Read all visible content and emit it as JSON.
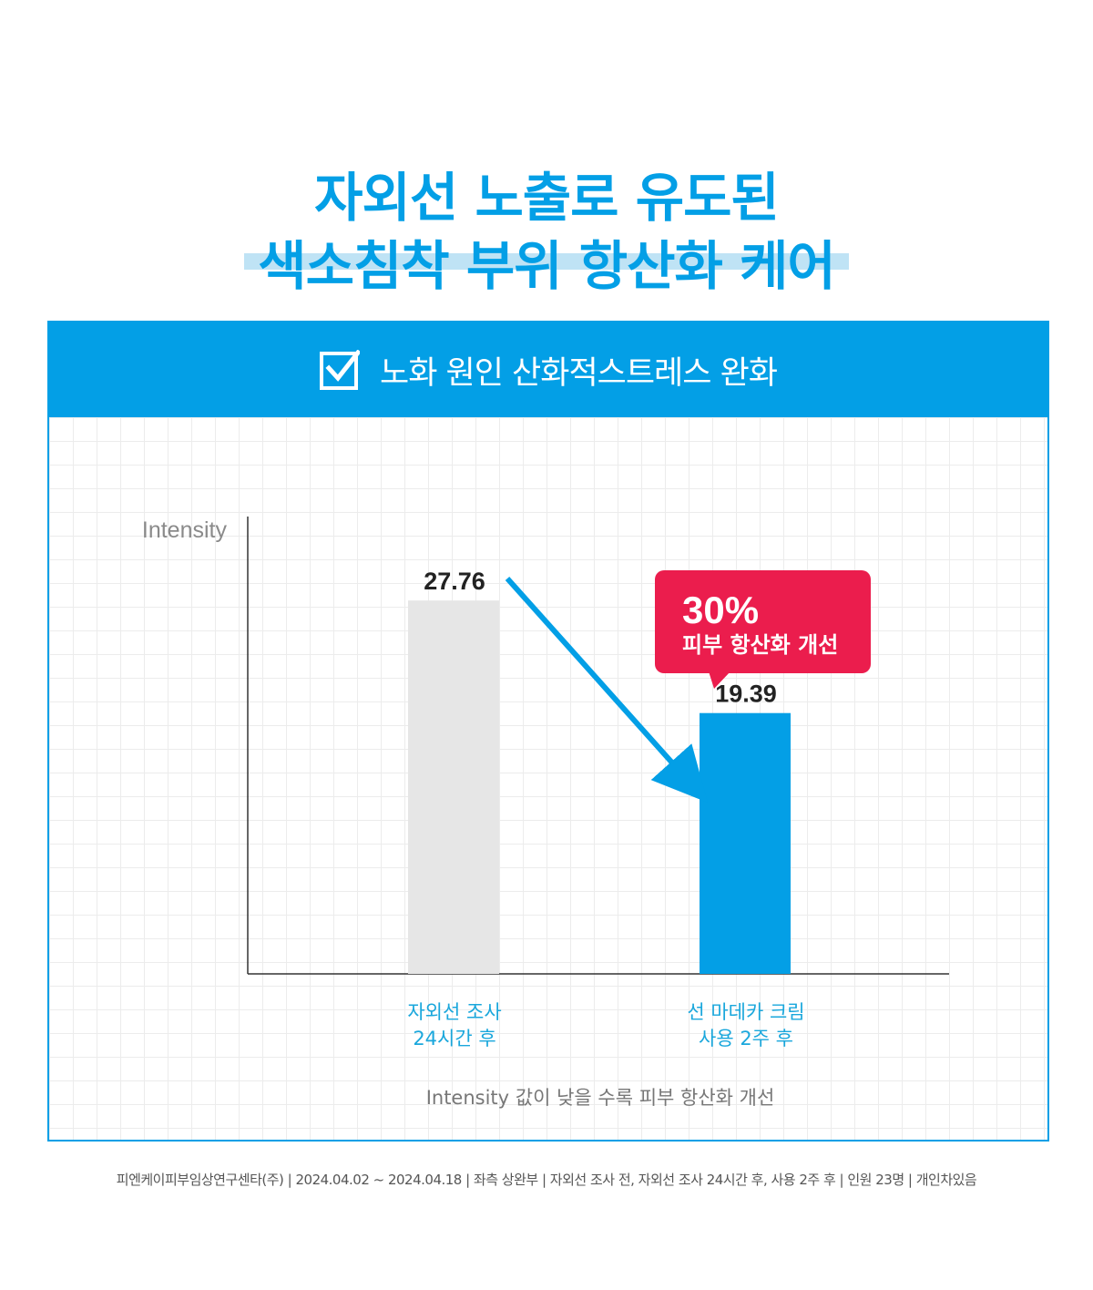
{
  "headline": {
    "line1": "자외선 노출로 유도된",
    "line2": "색소침착 부위 항산화 케어"
  },
  "panel": {
    "title": "노화 원인 산화적스트레스 완화",
    "icon": "checkbox-icon"
  },
  "callout": {
    "percent": "30%",
    "text": "피부 항산화 개선"
  },
  "note": "Intensity 값이 낮을 수록 피부 항산화 개선",
  "footer": "피엔케이피부임상연구센타(주)  | 2024.04.02 ~ 2024.04.18  | 좌측 상완부 | 자외선 조사 전, 자외선 조사 24시간 후, 사용 2주 후 | 인원 23명  |  개인차있음",
  "colors": {
    "brand": "#039fe6",
    "bar_before": "#e6e6e6",
    "bar_after": "#039fe6",
    "callout": "#eb1d4d",
    "label": "#1aa7dc"
  },
  "chart_data": {
    "type": "bar",
    "ylabel": "Intensity",
    "categories": [
      [
        "자외선 조사",
        "24시간 후"
      ],
      [
        "선 마데카 크림",
        "사용 2주 후"
      ]
    ],
    "values": [
      27.76,
      19.39
    ],
    "value_labels": [
      "27.76",
      "19.39"
    ],
    "ylim": [
      0,
      34
    ],
    "grid": false,
    "legend": "none"
  }
}
